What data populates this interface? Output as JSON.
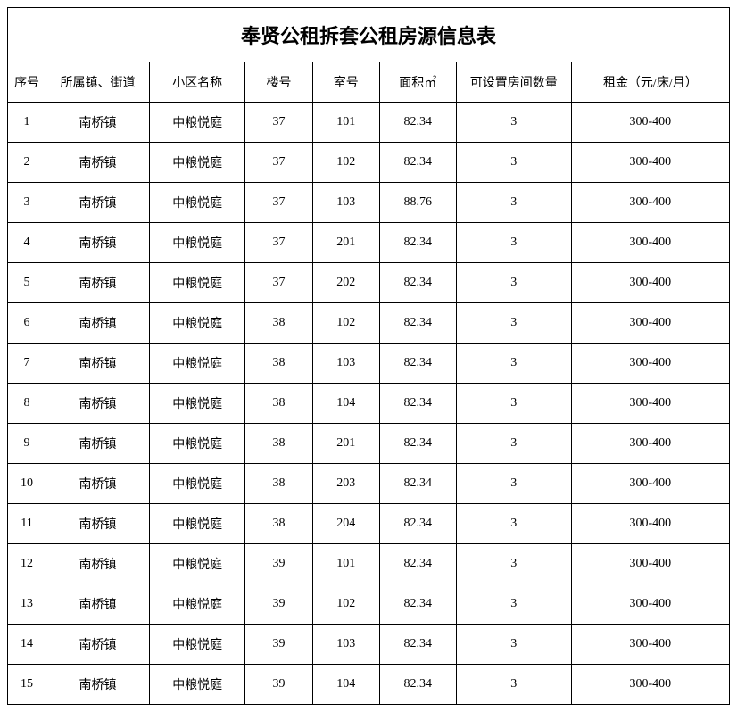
{
  "title": "奉贤公租拆套公租房源信息表",
  "columns": [
    "序号",
    "所属镇、街道",
    "小区名称",
    "楼号",
    "室号",
    "面积㎡",
    "可设置房间数量",
    "租金（元/床/月）"
  ],
  "rows": [
    [
      "1",
      "南桥镇",
      "中粮悦庭",
      "37",
      "101",
      "82.34",
      "3",
      "300-400"
    ],
    [
      "2",
      "南桥镇",
      "中粮悦庭",
      "37",
      "102",
      "82.34",
      "3",
      "300-400"
    ],
    [
      "3",
      "南桥镇",
      "中粮悦庭",
      "37",
      "103",
      "88.76",
      "3",
      "300-400"
    ],
    [
      "4",
      "南桥镇",
      "中粮悦庭",
      "37",
      "201",
      "82.34",
      "3",
      "300-400"
    ],
    [
      "5",
      "南桥镇",
      "中粮悦庭",
      "37",
      "202",
      "82.34",
      "3",
      "300-400"
    ],
    [
      "6",
      "南桥镇",
      "中粮悦庭",
      "38",
      "102",
      "82.34",
      "3",
      "300-400"
    ],
    [
      "7",
      "南桥镇",
      "中粮悦庭",
      "38",
      "103",
      "82.34",
      "3",
      "300-400"
    ],
    [
      "8",
      "南桥镇",
      "中粮悦庭",
      "38",
      "104",
      "82.34",
      "3",
      "300-400"
    ],
    [
      "9",
      "南桥镇",
      "中粮悦庭",
      "38",
      "201",
      "82.34",
      "3",
      "300-400"
    ],
    [
      "10",
      "南桥镇",
      "中粮悦庭",
      "38",
      "203",
      "82.34",
      "3",
      "300-400"
    ],
    [
      "11",
      "南桥镇",
      "中粮悦庭",
      "38",
      "204",
      "82.34",
      "3",
      "300-400"
    ],
    [
      "12",
      "南桥镇",
      "中粮悦庭",
      "39",
      "101",
      "82.34",
      "3",
      "300-400"
    ],
    [
      "13",
      "南桥镇",
      "中粮悦庭",
      "39",
      "102",
      "82.34",
      "3",
      "300-400"
    ],
    [
      "14",
      "南桥镇",
      "中粮悦庭",
      "39",
      "103",
      "82.34",
      "3",
      "300-400"
    ],
    [
      "15",
      "南桥镇",
      "中粮悦庭",
      "39",
      "104",
      "82.34",
      "3",
      "300-400"
    ]
  ],
  "column_classes": [
    "col-seq",
    "col-town",
    "col-community",
    "col-building",
    "col-room",
    "col-area",
    "col-rooms",
    "col-rent"
  ],
  "styling": {
    "border_color": "#000000",
    "background_color": "#ffffff",
    "title_fontsize": 22,
    "header_fontsize": 14,
    "cell_fontsize": 14,
    "text_color": "#000000"
  }
}
